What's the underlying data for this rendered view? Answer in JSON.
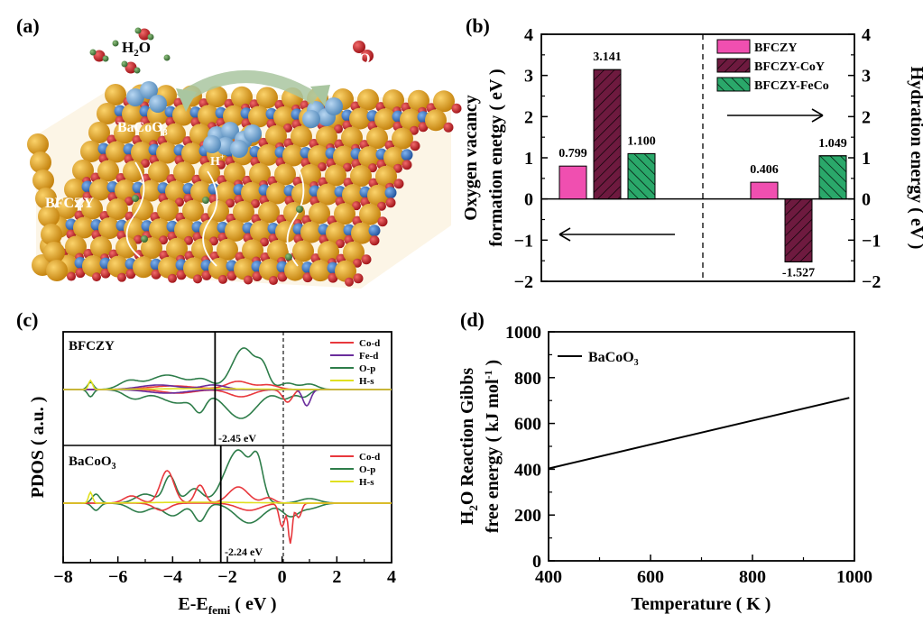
{
  "panels": {
    "a": "(a)",
    "b": "(b)",
    "c": "(c)",
    "d": "(d)"
  },
  "panel_a": {
    "h2o_label": "H",
    "h2o_sub": "2",
    "h2o_o": "O",
    "o2_label": "O",
    "o2_sub": "2",
    "bacoo3_label": "BaCoO",
    "bacoo3_sub": "3",
    "bfczy_label": "BFCZY",
    "h_label": "H",
    "h_sup": "+",
    "colors": {
      "ba": "#e8a21a",
      "o": "#c8161d",
      "co": "#2b6fc7",
      "cluster": "#6fa8d6",
      "arrow": "#a9c6a0",
      "h": "#3f7a3a"
    }
  },
  "chart_data": [
    {
      "type": "bar",
      "panel": "b",
      "ylabel_left_line1": "Oxygen vacancy",
      "ylabel_left_line2": "formation enetgy ( eV )",
      "ylabel_right": "Hydration energy ( eV )",
      "ylim": [
        -2,
        4
      ],
      "yticks": [
        "−2",
        "−1",
        "0",
        "1",
        "2",
        "3",
        "4"
      ],
      "groups": [
        "Oxygen vacancy formation energy",
        "Hydration energy"
      ],
      "series": [
        {
          "name": "BFCZY",
          "color": "#f04fb0",
          "hatch": "none",
          "values": [
            0.799,
            0.406
          ],
          "labels": [
            "0.799",
            "0.406"
          ]
        },
        {
          "name": "BFCZY-CoY",
          "color": "#6e1a3f",
          "hatch": "forward",
          "values": [
            3.141,
            -1.527
          ],
          "labels": [
            "3.141",
            "-1.527"
          ]
        },
        {
          "name": "BFCZY-FeCo",
          "color": "#2aa86a",
          "hatch": "back",
          "values": [
            1.1,
            1.049
          ],
          "labels": [
            "1.100",
            "1.049"
          ]
        }
      ]
    },
    {
      "type": "line",
      "panel": "c",
      "ylabel": "PDOS ( a.u. )",
      "xlabel_main": "E-E",
      "xlabel_sub": "femi",
      "xlabel_unit": " ( eV )",
      "xlim": [
        -8,
        4
      ],
      "xticks": [
        "−8",
        "−6",
        "−4",
        "−2",
        "0",
        "2",
        "4"
      ],
      "subplots": [
        {
          "name": "BFCZY",
          "band_center": -2.45,
          "band_center_label": "-2.45 eV",
          "legend": [
            {
              "name": "Co-d",
              "color": "#e8383d"
            },
            {
              "name": "Fe-d",
              "color": "#6a2d9c"
            },
            {
              "name": "O-p",
              "color": "#2e7d4a"
            },
            {
              "name": "H-s",
              "color": "#e0e020"
            }
          ]
        },
        {
          "name": "BaCoO",
          "name_sub": "3",
          "band_center": -2.24,
          "band_center_label": "-2.24 eV",
          "legend": [
            {
              "name": "Co-d",
              "color": "#e8383d"
            },
            {
              "name": "O-p",
              "color": "#2e7d4a"
            },
            {
              "name": "H-s",
              "color": "#e0e020"
            }
          ]
        }
      ]
    },
    {
      "type": "line",
      "panel": "d",
      "title": "",
      "ylabel_line1_pre": "H",
      "ylabel_line1_sub": "2",
      "ylabel_line1_post": "O Reaction Gibbs",
      "ylabel_line2_pre": "free energy ( kJ mol",
      "ylabel_line2_sup": "-1",
      "ylabel_line2_post": " )",
      "xlabel": "Temperature ( K )",
      "xlim": [
        400,
        1000
      ],
      "ylim": [
        0,
        1000
      ],
      "xticks": [
        "400",
        "600",
        "800",
        "1000"
      ],
      "yticks": [
        "0",
        "200",
        "400",
        "600",
        "800",
        "1000"
      ],
      "series": [
        {
          "name": "BaCoO",
          "name_sub": "3",
          "color": "#000000",
          "x": [
            400,
            990
          ],
          "y": [
            403,
            712
          ]
        }
      ]
    }
  ]
}
